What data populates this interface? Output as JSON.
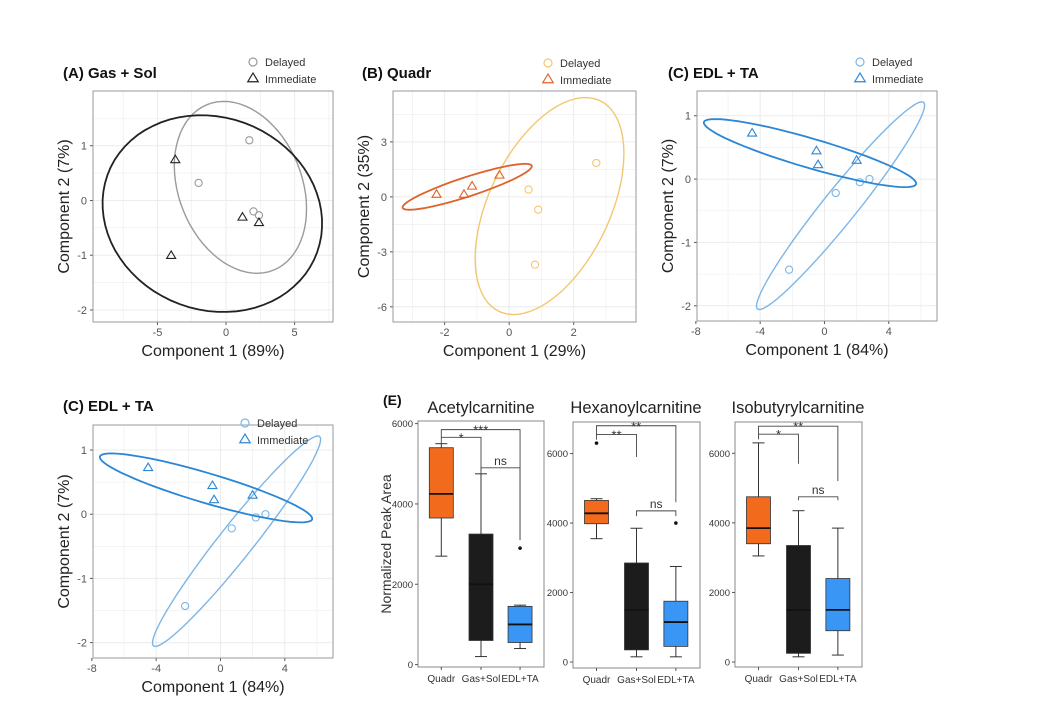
{
  "chart_data": [
    {
      "type": "scatter",
      "panel": "A",
      "title": "(A) Gas + Sol",
      "xlabel": "Component 1 (89%)",
      "ylabel": "Component 2 (7%)",
      "xlim": [
        -9.7,
        7.8
      ],
      "ylim": [
        -2.22,
        2.0
      ],
      "xticks": [
        -5,
        0,
        5
      ],
      "yticks": [
        -2,
        -1,
        0,
        1
      ],
      "legend": {
        "position": "top-right",
        "entries": [
          "Delayed",
          "Immediate"
        ]
      },
      "series": [
        {
          "name": "Delayed",
          "marker": "circle",
          "color": "#9a9a9a",
          "points": [
            [
              1.7,
              1.1
            ],
            [
              -2.0,
              0.32
            ],
            [
              2.0,
              -0.2
            ],
            [
              2.4,
              -0.27
            ]
          ],
          "ellipse": {
            "center": [
              1.05,
              0.24
            ],
            "axis1": [
              4.8,
              -0.25
            ],
            "axis2": [
              -0.45,
              1.55
            ]
          }
        },
        {
          "name": "Immediate",
          "marker": "triangle",
          "color": "#222222",
          "points": [
            [
              -3.7,
              0.75
            ],
            [
              1.2,
              -0.3
            ],
            [
              2.4,
              -0.4
            ],
            [
              -4.0,
              -1.0
            ]
          ],
          "ellipse": {
            "center": [
              -1.0,
              -0.24
            ],
            "axis1": [
              8.0,
              -0.25
            ],
            "axis2": [
              0.3,
              1.78
            ]
          }
        }
      ]
    },
    {
      "type": "scatter",
      "panel": "B",
      "title": "(B) Quadr",
      "xlabel": "Component 1 (29%)",
      "ylabel": "Component 2 (35%)",
      "xlim": [
        -3.6,
        3.93
      ],
      "ylim": [
        -6.83,
        5.78
      ],
      "xticks": [
        -2,
        0,
        2
      ],
      "yticks": [
        -6,
        -3,
        0,
        3
      ],
      "legend": {
        "position": "top-right",
        "entries": [
          "Delayed",
          "Immediate"
        ]
      },
      "series": [
        {
          "name": "Delayed",
          "marker": "circle",
          "color": "#f3c76f",
          "points": [
            [
              0.6,
              0.4
            ],
            [
              0.9,
              -0.7
            ],
            [
              0.8,
              -3.7
            ],
            [
              2.7,
              1.85
            ]
          ],
          "ellipse": {
            "center": [
              1.25,
              -0.5
            ],
            "axis1": [
              1.5,
              5.8
            ],
            "axis2": [
              1.75,
              -1.2
            ]
          }
        },
        {
          "name": "Immediate",
          "marker": "triangle",
          "color": "#e0622a",
          "points": [
            [
              -2.25,
              0.15
            ],
            [
              -1.4,
              0.15
            ],
            [
              -1.15,
              0.6
            ],
            [
              -0.3,
              1.2
            ]
          ],
          "ellipse": {
            "center": [
              -1.3,
              0.55
            ],
            "axis1": [
              2.0,
              1.15
            ],
            "axis2": [
              0.1,
              -0.5
            ]
          }
        }
      ]
    },
    {
      "type": "scatter",
      "panel": "C",
      "title": "(C) EDL + TA",
      "xlabel": "Component 1 (84%)",
      "ylabel": "Component 2 (7%)",
      "xlim": [
        -7.93,
        7.0
      ],
      "ylim": [
        -2.24,
        1.39
      ],
      "xticks": [
        -8,
        -4,
        0,
        4
      ],
      "yticks": [
        -2,
        -1,
        0,
        1
      ],
      "legend": {
        "position": "top-right",
        "entries": [
          "Delayed",
          "Immediate"
        ]
      },
      "series": [
        {
          "name": "Delayed",
          "marker": "circle",
          "color": "#7cb6e6",
          "points": [
            [
              2.2,
              -0.05
            ],
            [
              2.8,
              0.0
            ],
            [
              0.7,
              -0.22
            ],
            [
              -2.2,
              -1.43
            ]
          ],
          "ellipse": {
            "center": [
              1.0,
              -0.42
            ],
            "axis1": [
              5.2,
              1.62
            ],
            "axis2": [
              0.55,
              -0.25
            ]
          }
        },
        {
          "name": "Immediate",
          "marker": "triangle",
          "color": "#2b86d6",
          "points": [
            [
              -4.5,
              0.73
            ],
            [
              -0.5,
              0.45
            ],
            [
              -0.4,
              0.23
            ],
            [
              2.0,
              0.3
            ]
          ],
          "ellipse": {
            "center": [
              -0.9,
              0.41
            ],
            "axis1": [
              6.6,
              -0.49
            ],
            "axis2": [
              0.3,
              0.22
            ]
          }
        }
      ]
    },
    {
      "type": "scatter",
      "panel": "C (repeat)",
      "title": "(C) EDL + TA",
      "xlabel": "Component 1 (84%)",
      "ylabel": "Component 2 (7%)",
      "xlim": [
        -7.93,
        7.0
      ],
      "ylim": [
        -2.24,
        1.39
      ],
      "xticks": [
        -8,
        -4,
        0,
        4
      ],
      "yticks": [
        -2,
        -1,
        0,
        1
      ],
      "legend": {
        "position": "top-right",
        "entries": [
          "Delayed",
          "Immediate"
        ]
      },
      "series": [
        {
          "name": "Delayed",
          "marker": "circle",
          "color": "#7cb6e6",
          "points": [
            [
              2.2,
              -0.05
            ],
            [
              2.8,
              0.0
            ],
            [
              0.7,
              -0.22
            ],
            [
              -2.2,
              -1.43
            ]
          ],
          "ellipse": {
            "center": [
              1.0,
              -0.42
            ],
            "axis1": [
              5.2,
              1.62
            ],
            "axis2": [
              0.55,
              -0.25
            ]
          }
        },
        {
          "name": "Immediate",
          "marker": "triangle",
          "color": "#2b86d6",
          "points": [
            [
              -4.5,
              0.73
            ],
            [
              -0.5,
              0.45
            ],
            [
              -0.4,
              0.23
            ],
            [
              2.0,
              0.3
            ]
          ],
          "ellipse": {
            "center": [
              -0.9,
              0.41
            ],
            "axis1": [
              6.6,
              -0.49
            ],
            "axis2": [
              0.3,
              0.22
            ]
          }
        }
      ]
    },
    {
      "type": "box",
      "panel": "E",
      "panel_label": "(E)",
      "title": "Acetylcarnitine",
      "ylabel": "Normalized Peak Area",
      "ylim": [
        -60,
        6065
      ],
      "yticks": [
        0,
        2000,
        4000,
        6000
      ],
      "categories": [
        "Quadr",
        "Gas+Sol",
        "EDL+TA"
      ],
      "boxes": [
        {
          "min": 2700,
          "q1": 3650,
          "median": 4250,
          "q3": 5400,
          "max": 5500,
          "outliers": [],
          "color": "#f26a1b"
        },
        {
          "min": 200,
          "q1": 600,
          "median": 2000,
          "q3": 3250,
          "max": 4750,
          "outliers": [],
          "color": "#1c1c1c"
        },
        {
          "min": 400,
          "q1": 550,
          "median": 1000,
          "q3": 1450,
          "max": 1480,
          "outliers": [
            2900
          ],
          "color": "#3a96f5"
        }
      ],
      "brackets": [
        {
          "from": 0,
          "to": 1,
          "y": 5660,
          "left_end": 5500,
          "right_end": 4800,
          "label": "*"
        },
        {
          "from": 0,
          "to": 2,
          "y": 5850,
          "left_end": 5660,
          "right_end": 3100,
          "label": "***"
        },
        {
          "from": 1,
          "to": 2,
          "y": 4900,
          "left_end": 4750,
          "right_end": 3100,
          "label": "ns"
        }
      ]
    },
    {
      "type": "box",
      "title": "Hexanoylcarnitine",
      "ylim": [
        -172,
        6908
      ],
      "yticks": [
        0,
        2000,
        4000,
        6000
      ],
      "categories": [
        "Quadr",
        "Gas+Sol",
        "EDL+TA"
      ],
      "boxes": [
        {
          "min": 3550,
          "q1": 3980,
          "median": 4280,
          "q3": 4650,
          "max": 4700,
          "outliers": [
            6300
          ],
          "color": "#f26a1b"
        },
        {
          "min": 150,
          "q1": 350,
          "median": 1500,
          "q3": 2850,
          "max": 3850,
          "outliers": [],
          "color": "#1c1c1c"
        },
        {
          "min": 150,
          "q1": 450,
          "median": 1150,
          "q3": 1750,
          "max": 2750,
          "outliers": [
            4000
          ],
          "color": "#3a96f5"
        }
      ],
      "brackets": [
        {
          "from": 0,
          "to": 1,
          "y": 6550,
          "left_end": 6400,
          "right_end": 5900,
          "label": "**"
        },
        {
          "from": 0,
          "to": 2,
          "y": 6800,
          "left_end": 6550,
          "right_end": 4600,
          "label": "**"
        },
        {
          "from": 1,
          "to": 2,
          "y": 4350,
          "left_end": 4200,
          "right_end": 4200,
          "label": "ns"
        }
      ]
    },
    {
      "type": "box",
      "title": "Isobutyrylcarnitine",
      "ylim": [
        -143,
        6900
      ],
      "yticks": [
        0,
        2000,
        4000,
        6000
      ],
      "categories": [
        "Quadr",
        "Gas+Sol",
        "EDL+TA"
      ],
      "boxes": [
        {
          "min": 3050,
          "q1": 3400,
          "median": 3850,
          "q3": 4750,
          "max": 6300,
          "outliers": [],
          "color": "#f26a1b"
        },
        {
          "min": 150,
          "q1": 250,
          "median": 1500,
          "q3": 3350,
          "max": 4350,
          "outliers": [],
          "color": "#1c1c1c"
        },
        {
          "min": 200,
          "q1": 900,
          "median": 1500,
          "q3": 2400,
          "max": 3850,
          "outliers": [],
          "color": "#3a96f5"
        }
      ],
      "brackets": [
        {
          "from": 0,
          "to": 1,
          "y": 6550,
          "left_end": 6400,
          "right_end": 5700,
          "label": "*"
        },
        {
          "from": 0,
          "to": 2,
          "y": 6780,
          "left_end": 6550,
          "right_end": 5200,
          "label": "**"
        },
        {
          "from": 1,
          "to": 2,
          "y": 4750,
          "left_end": 4650,
          "right_end": 4650,
          "label": "ns"
        }
      ]
    }
  ]
}
